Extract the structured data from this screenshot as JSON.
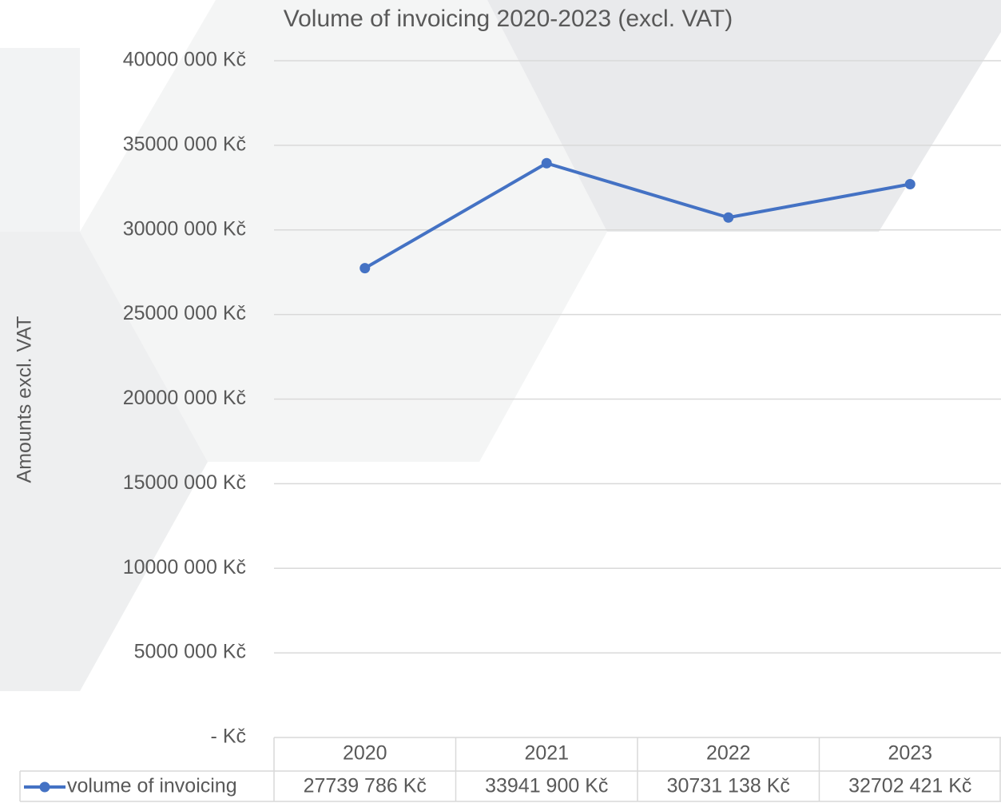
{
  "chart_data": {
    "type": "line",
    "title": "Volume of invoicing 2020-2023 (excl. VAT)",
    "y_axis_label": "Amounts excl. VAT",
    "categories": [
      "2020",
      "2021",
      "2022",
      "2023"
    ],
    "series": [
      {
        "name": "volume of invoicing",
        "color": "#4472c4",
        "values": [
          27739786,
          33941900,
          30731138,
          32702421
        ],
        "value_labels": [
          "27739 786 Kč",
          "33941 900 Kč",
          "30731 138 Kč",
          "32702 421 Kč"
        ]
      }
    ],
    "ylim": [
      0,
      40000000
    ],
    "yticks": [
      {
        "value": 0,
        "label": "-   Kč"
      },
      {
        "value": 5000000,
        "label": "5000 000 Kč"
      },
      {
        "value": 10000000,
        "label": "10000 000 Kč"
      },
      {
        "value": 15000000,
        "label": "15000 000 Kč"
      },
      {
        "value": 20000000,
        "label": "20000 000 Kč"
      },
      {
        "value": 25000000,
        "label": "25000 000 Kč"
      },
      {
        "value": 30000000,
        "label": "30000 000 Kč"
      },
      {
        "value": 35000000,
        "label": "35000 000 Kč"
      },
      {
        "value": 40000000,
        "label": "40000 000 Kč"
      }
    ],
    "grid": true,
    "legend": "table"
  }
}
